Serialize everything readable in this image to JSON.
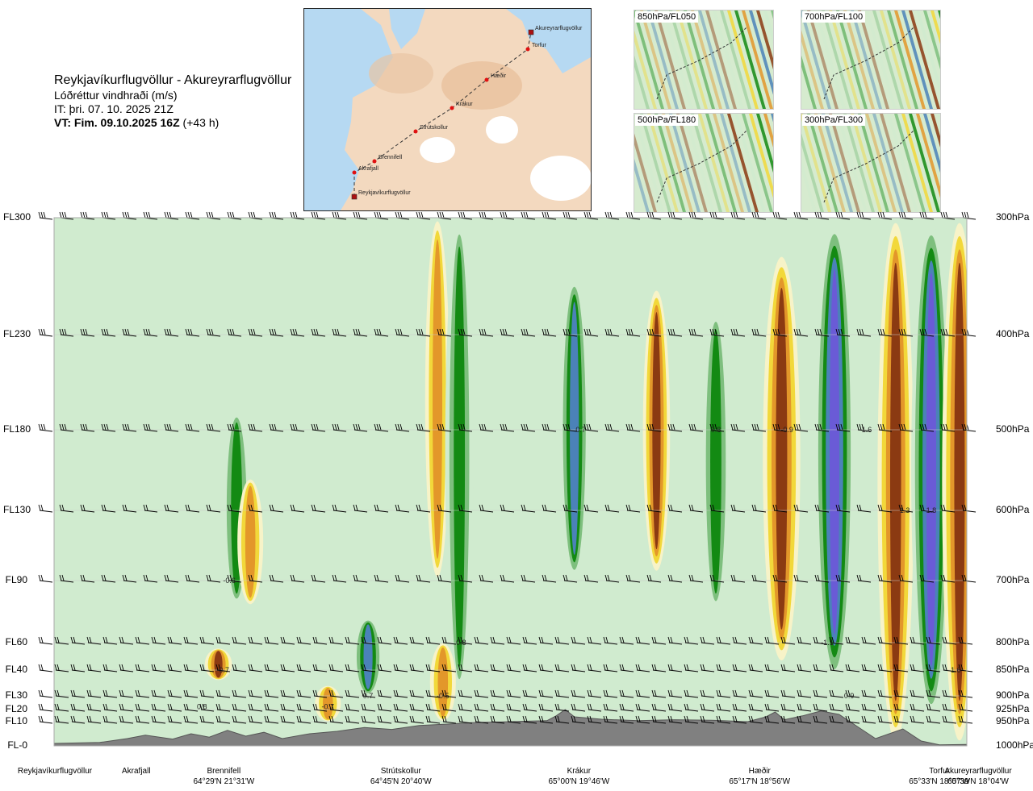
{
  "header": {
    "title": "Reykjavíkurflugvöllur - Akureyrarflugvöllur",
    "parameter": "Lóðréttur vindhraði (m/s)",
    "issue_time": "IT: þri. 07. 10. 2025 21Z",
    "valid_prefix": "VT: Fim. 09.10.2025 16Z",
    "valid_suffix": "(+43 h)"
  },
  "map": {
    "route_points": [
      {
        "name": "Akureyrarflugvöllur"
      },
      {
        "name": "Torfur"
      },
      {
        "name": "Hæðir"
      },
      {
        "name": "Krákur"
      },
      {
        "name": "Strútskollur"
      },
      {
        "name": "Brennifell"
      },
      {
        "name": "Akrafjall"
      },
      {
        "name": "Reykjavíkurflugvöllur"
      }
    ]
  },
  "mini_maps": [
    {
      "label": "850hPa/FL050"
    },
    {
      "label": "700hPa/FL100"
    },
    {
      "label": "500hPa/FL180"
    },
    {
      "label": "300hPa/FL300"
    }
  ],
  "chart_data": {
    "type": "heatmap",
    "title": "Reykjavíkurflugvöllur - Akureyrarflugvöllur",
    "variable": "Lóðréttur vindhraði (m/s)",
    "levels": [
      {
        "fl": "FL300",
        "hpa": "300hPa"
      },
      {
        "fl": "FL230",
        "hpa": "400hPa"
      },
      {
        "fl": "FL180",
        "hpa": "500hPa"
      },
      {
        "fl": "FL130",
        "hpa": "600hPa"
      },
      {
        "fl": "FL90",
        "hpa": "700hPa"
      },
      {
        "fl": "FL60",
        "hpa": "800hPa"
      },
      {
        "fl": "FL40",
        "hpa": "850hPa"
      },
      {
        "fl": "FL30",
        "hpa": "900hPa"
      },
      {
        "fl": "FL20",
        "hpa": "925hPa"
      },
      {
        "fl": "FL10",
        "hpa": "950hPa"
      },
      {
        "fl": "FL-0",
        "hpa": "1000hPa"
      }
    ],
    "hpa_values": [
      300,
      400,
      500,
      600,
      700,
      800,
      850,
      900,
      925,
      950,
      1000
    ],
    "stations": [
      {
        "name": "Reykjavíkurflugvöllur",
        "coord": "",
        "dist": 0.0
      },
      {
        "name": "Akrafjall",
        "coord": "",
        "dist": 0.09
      },
      {
        "name": "Brennifell",
        "coord": "64°29'N 21°31'W",
        "dist": 0.186
      },
      {
        "name": "Strútskollur",
        "coord": "64°45'N 20°40'W",
        "dist": 0.38
      },
      {
        "name": "Krákur",
        "coord": "65°00'N 19°46'W",
        "dist": 0.575
      },
      {
        "name": "Hæðir",
        "coord": "65°17'N 18°56'W",
        "dist": 0.773
      },
      {
        "name": "Torfur",
        "coord": "65°33'N 18°07'W",
        "dist": 0.97
      },
      {
        "name": "Akureyrarflugvöllur",
        "coord": "65°39'N 18°04'W",
        "dist": 1.0
      }
    ],
    "value_labels": [
      {
        "text": "-0.6",
        "dist": 0.192,
        "hpa": 700
      },
      {
        "text": "-0.7",
        "dist": 0.185,
        "hpa": 850
      },
      {
        "text": "0.8",
        "dist": 0.162,
        "hpa": 920
      },
      {
        "text": "-0.7",
        "dist": 0.3,
        "hpa": 920
      },
      {
        "text": "0.7",
        "dist": 0.344,
        "hpa": 900
      },
      {
        "text": "0.8",
        "dist": 0.446,
        "hpa": 800
      },
      {
        "text": "-0.5",
        "dist": 0.426,
        "hpa": 900
      },
      {
        "text": "0.7",
        "dist": 0.577,
        "hpa": 500
      },
      {
        "text": "0.8",
        "dist": 0.725,
        "hpa": 500
      },
      {
        "text": "-0.9",
        "dist": 0.803,
        "hpa": 500
      },
      {
        "text": "-1.6",
        "dist": 0.889,
        "hpa": 500
      },
      {
        "text": "1.3",
        "dist": 0.932,
        "hpa": 600
      },
      {
        "text": "1.8",
        "dist": 0.961,
        "hpa": 600
      },
      {
        "text": "-1.1",
        "dist": 0.847,
        "hpa": 800
      },
      {
        "text": "0.9",
        "dist": 0.871,
        "hpa": 900
      },
      {
        "text": "1.6",
        "dist": 0.988,
        "hpa": 850
      }
    ],
    "plumes": [
      {
        "dist": 0.2,
        "val": 0.7,
        "top": 480,
        "bottom": 740
      },
      {
        "dist": 0.215,
        "val": -0.5,
        "top": 560,
        "bottom": 740
      },
      {
        "dist": 0.18,
        "val": -0.6,
        "top": 810,
        "bottom": 870
      },
      {
        "dist": 0.3,
        "val": -0.5,
        "top": 880,
        "bottom": 950
      },
      {
        "dist": 0.344,
        "val": 0.8,
        "top": 760,
        "bottom": 900
      },
      {
        "dist": 0.42,
        "val": -0.4,
        "top": 300,
        "bottom": 700
      },
      {
        "dist": 0.444,
        "val": 0.7,
        "top": 300,
        "bottom": 900
      },
      {
        "dist": 0.426,
        "val": -0.5,
        "top": 800,
        "bottom": 950
      },
      {
        "dist": 0.57,
        "val": 0.8,
        "top": 350,
        "bottom": 700
      },
      {
        "dist": 0.66,
        "val": -0.6,
        "top": 360,
        "bottom": 690
      },
      {
        "dist": 0.725,
        "val": 0.7,
        "top": 380,
        "bottom": 750
      },
      {
        "dist": 0.797,
        "val": -1.4,
        "top": 330,
        "bottom": 840
      },
      {
        "dist": 0.855,
        "val": 1.6,
        "top": 300,
        "bottom": 880
      },
      {
        "dist": 0.922,
        "val": -1.3,
        "top": 300,
        "bottom": 1000
      },
      {
        "dist": 0.961,
        "val": 1.6,
        "top": 300,
        "bottom": 950
      },
      {
        "dist": 0.992,
        "val": -1.2,
        "top": 300,
        "bottom": 1000
      }
    ],
    "colors": {
      "strong_down": "#8b3a12",
      "down": "#e3972a",
      "weak_down": "#f2d83a",
      "faint_down": "#f7f3c8",
      "faint_up": "#d0ebcf",
      "weak_up": "#7ebf7e",
      "up": "#138a13",
      "strong_up": "#4b82b8",
      "max_up": "#6a5bd6",
      "terrain": "#808080"
    }
  },
  "bottom_row": {
    "coords": [
      "64°29'N 21°31'W",
      "64°45'N 20°40'W",
      "65°00'N 19°46'W",
      "65°17'N 18°56'W",
      "65°33'N 18°07'W",
      "65°39'N 18°04'W"
    ]
  }
}
